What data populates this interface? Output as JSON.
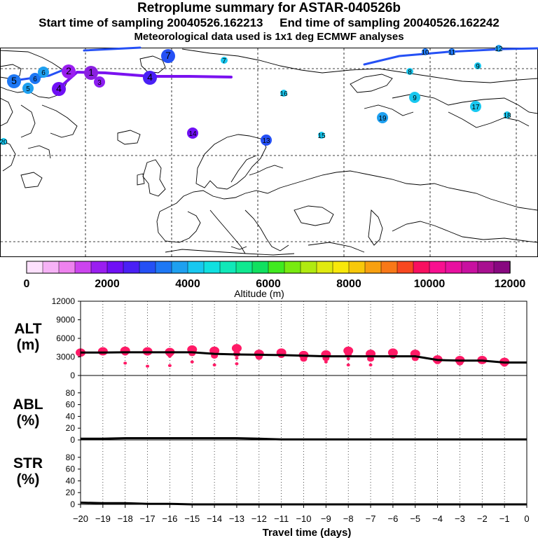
{
  "header": {
    "title": "Retroplume summary for ASTAR-040526b",
    "subtitle": "Start time of sampling 20040526.162213     End time of sampling 20040526.162242",
    "met_line": "Meteorological data used is 1x1 deg ECMWF analyses"
  },
  "colors": {
    "background": "#ffffff",
    "ink": "#000000",
    "alt_marker": "#ff1a66",
    "track_line": "#000000",
    "coast": "#000000",
    "grid_dash": "#000000"
  },
  "colorbar": {
    "label": "Altitude (m)",
    "tick_labels": [
      "0",
      "2000",
      "4000",
      "6000",
      "8000",
      "10000",
      "12000"
    ],
    "min": 0,
    "max": 12000,
    "colors": [
      "#fde0fd",
      "#f6b2f6",
      "#ee82ee",
      "#cc44ee",
      "#9a1ef0",
      "#7010f5",
      "#4a20f5",
      "#2550f5",
      "#1e78f5",
      "#1ea0f0",
      "#18c8f0",
      "#10e0e0",
      "#10e8b8",
      "#10e890",
      "#10e060",
      "#40ea20",
      "#78ea10",
      "#b0ea10",
      "#e0ea10",
      "#f8e80a",
      "#f8c80a",
      "#f8a010",
      "#f87818",
      "#f84820",
      "#f81060",
      "#f81090",
      "#e810a0",
      "#c810a0",
      "#a81090",
      "#880880"
    ]
  },
  "map": {
    "points": [
      {
        "label": "1",
        "color": "#8a20e0",
        "size": "lg"
      },
      {
        "label": "2",
        "color": "#9a1ef0",
        "size": "lg"
      },
      {
        "label": "3",
        "color": "#8c1ef0",
        "size": "md"
      },
      {
        "label": "4",
        "color": "#7010f5",
        "size": "lg"
      },
      {
        "label": "4",
        "color": "#4a20f5",
        "size": "lg"
      },
      {
        "label": "5",
        "color": "#1e78f5",
        "size": "lg"
      },
      {
        "label": "5",
        "color": "#1ea0f0",
        "size": "md"
      },
      {
        "label": "6",
        "color": "#1e78f5",
        "size": "md"
      },
      {
        "label": "6",
        "color": "#1ea0f0",
        "size": "md"
      },
      {
        "label": "7",
        "color": "#2550f5",
        "size": "lg"
      },
      {
        "label": "7",
        "color": "#18c8f0",
        "size": "sm"
      },
      {
        "label": "8",
        "color": "#18c8f0",
        "size": "sm"
      },
      {
        "label": "9",
        "color": "#18c8f0",
        "size": "md"
      },
      {
        "label": "9",
        "color": "#18c8f0",
        "size": "sm"
      },
      {
        "label": "10",
        "color": "#1e78f5",
        "size": "sm"
      },
      {
        "label": "11",
        "color": "#1e78f5",
        "size": "sm"
      },
      {
        "label": "12",
        "color": "#1ea0f0",
        "size": "sm"
      },
      {
        "label": "13",
        "color": "#2550f5",
        "size": "md"
      },
      {
        "label": "14",
        "color": "#7010f5",
        "size": "md"
      },
      {
        "label": "15",
        "color": "#18c8f0",
        "size": "sm"
      },
      {
        "label": "16",
        "color": "#18c8f0",
        "size": "sm"
      },
      {
        "label": "17",
        "color": "#18c8f0",
        "size": "md"
      },
      {
        "label": "18",
        "color": "#18c8f0",
        "size": "sm"
      },
      {
        "label": "19",
        "color": "#1ea0f0",
        "size": "md"
      },
      {
        "label": "20",
        "color": "#18c8f0",
        "size": "sm"
      }
    ]
  },
  "panels": {
    "alt": {
      "label_line1": "ALT",
      "label_line2": "(m)",
      "ticks": [
        "0",
        "3000",
        "6000",
        "9000",
        "12000"
      ]
    },
    "abl": {
      "label_line1": "ABL",
      "label_line2": "(%)",
      "ticks": [
        "0",
        "20",
        "40",
        "60",
        "80"
      ]
    },
    "str": {
      "label_line1": "STR",
      "label_line2": "(%)",
      "ticks": [
        "0",
        "20",
        "40",
        "60",
        "80"
      ]
    },
    "xaxis": {
      "label": "Travel time (days)",
      "ticks": [
        "−20",
        "−19",
        "−18",
        "−17",
        "−16",
        "−15",
        "−14",
        "−13",
        "−12",
        "−11",
        "−10",
        "−9",
        "−8",
        "−7",
        "−6",
        "−5",
        "−4",
        "−3",
        "−2",
        "−1",
        "0"
      ]
    }
  },
  "chart_data": {
    "type": "line",
    "title": "Retroplume summary for ASTAR-040526b",
    "xlabel": "Travel time (days)",
    "x": [
      -20,
      -19,
      -18,
      -17,
      -16,
      -15,
      -14,
      -13,
      -12,
      -11,
      -10,
      -9,
      -8,
      -7,
      -6,
      -5,
      -4,
      -3,
      -2,
      -1,
      0
    ],
    "xlim": [
      -20,
      0
    ],
    "series": [
      {
        "name": "ALT mean altitude (m)",
        "ylim": [
          0,
          12000
        ],
        "values": [
          3700,
          3700,
          3750,
          3750,
          3750,
          3750,
          3500,
          3400,
          3350,
          3300,
          3200,
          3100,
          3100,
          3100,
          3100,
          3100,
          2500,
          2400,
          2400,
          2100,
          2100
        ]
      },
      {
        "name": "ABL (%)",
        "ylim": [
          0,
          100
        ],
        "values": [
          2,
          2,
          3,
          3,
          3,
          3,
          3,
          3,
          2,
          1,
          1,
          1,
          1,
          1,
          1,
          1,
          1,
          1,
          1,
          1,
          1
        ]
      },
      {
        "name": "STR (%)",
        "ylim": [
          0,
          100
        ],
        "values": [
          3,
          2,
          2,
          1,
          1,
          0,
          0,
          0,
          0,
          0,
          0,
          0,
          0,
          0,
          0,
          0,
          0,
          0,
          0,
          0,
          0
        ]
      }
    ],
    "alt_clusters": [
      {
        "day": -20,
        "altitudes": [
          3700,
          3800
        ]
      },
      {
        "day": -19,
        "altitudes": [
          3900
        ]
      },
      {
        "day": -18,
        "altitudes": [
          4000,
          3700,
          2000
        ]
      },
      {
        "day": -17,
        "altitudes": [
          3900,
          3700,
          1500
        ]
      },
      {
        "day": -16,
        "altitudes": [
          3800,
          3500,
          3100,
          1600
        ]
      },
      {
        "day": -15,
        "altitudes": [
          4200,
          3600,
          2200
        ]
      },
      {
        "day": -14,
        "altitudes": [
          4000,
          3200,
          1700
        ]
      },
      {
        "day": -13,
        "altitudes": [
          4400,
          3500,
          2800,
          1900
        ]
      },
      {
        "day": -12,
        "altitudes": [
          3500,
          3000
        ]
      },
      {
        "day": -11,
        "altitudes": [
          3700,
          3300
        ]
      },
      {
        "day": -10,
        "altitudes": [
          3300,
          2700
        ]
      },
      {
        "day": -9,
        "altitudes": [
          3400,
          2800,
          2200
        ]
      },
      {
        "day": -8,
        "altitudes": [
          4000,
          3500,
          2700,
          1700
        ]
      },
      {
        "day": -7,
        "altitudes": [
          3500,
          2700,
          1700
        ]
      },
      {
        "day": -6,
        "altitudes": [
          3700,
          3200
        ]
      },
      {
        "day": -5,
        "altitudes": [
          3500,
          2800
        ]
      },
      {
        "day": -4,
        "altitudes": [
          2600,
          2300
        ]
      },
      {
        "day": -3,
        "altitudes": [
          2500,
          2100
        ]
      },
      {
        "day": -2,
        "altitudes": [
          2500
        ]
      },
      {
        "day": -1,
        "altitudes": [
          2200,
          1900
        ]
      }
    ]
  }
}
